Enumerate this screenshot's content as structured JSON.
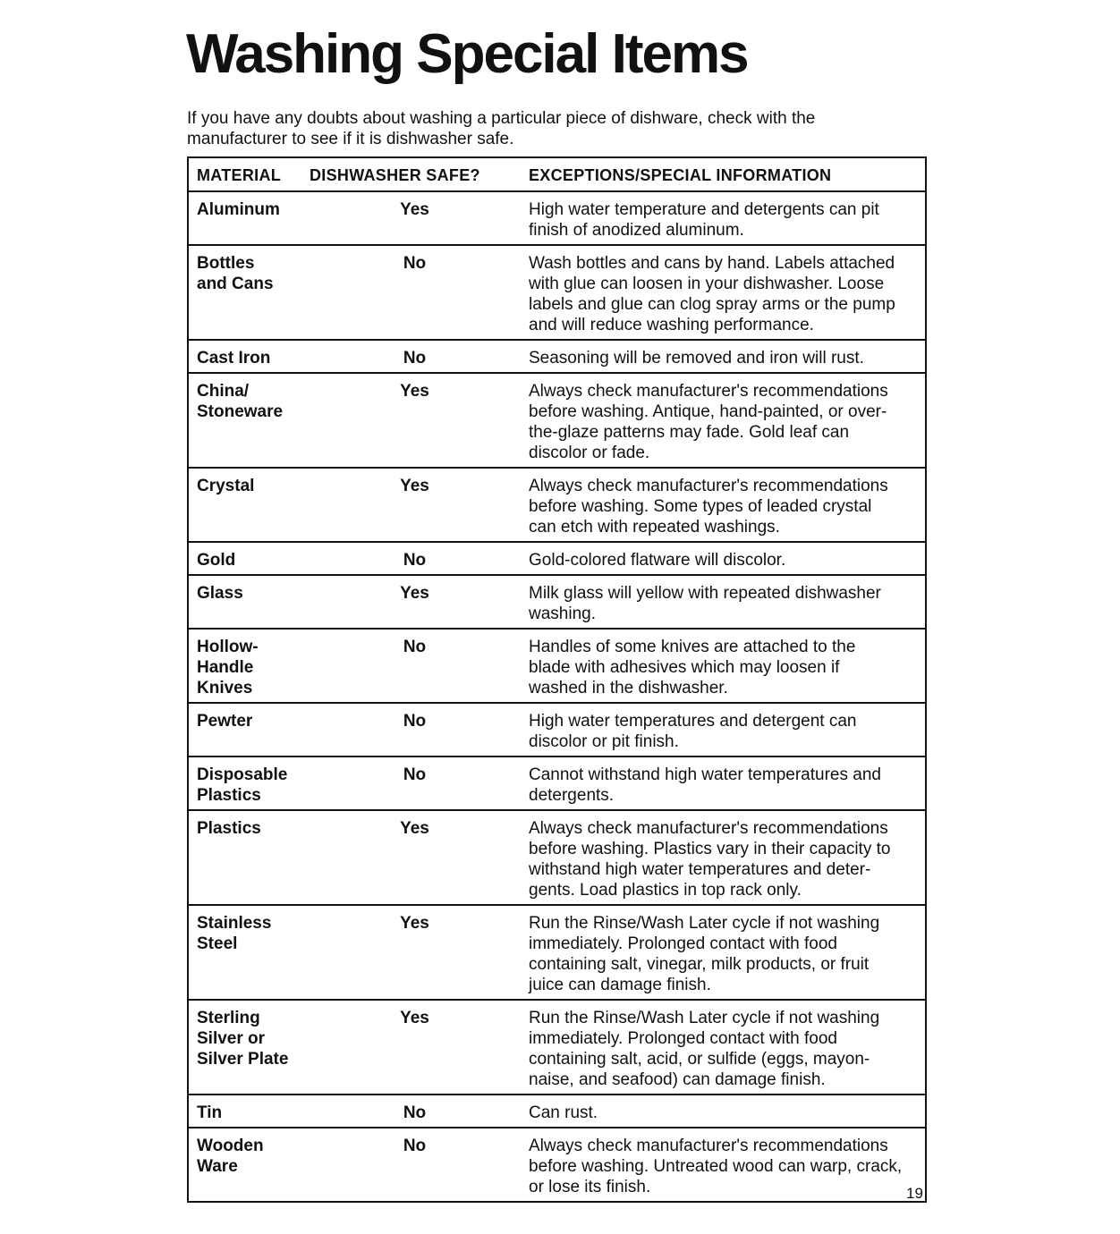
{
  "title": "Washing Special Items",
  "intro": "If you have any doubts about washing a particular piece of dishware, check with the\nmanufacturer to see if it is dishwasher safe.",
  "table": {
    "headers": [
      "MATERIAL",
      "DISHWASHER SAFE?",
      "EXCEPTIONS/SPECIAL INFORMATION"
    ],
    "rows": [
      {
        "material": "Aluminum",
        "safe": "Yes",
        "info": "High water temperature and detergents can pit\nfinish of anodized aluminum."
      },
      {
        "material": "Bottles\nand Cans",
        "safe": "No",
        "info": "Wash bottles and cans by hand. Labels attached\nwith glue can loosen in your dishwasher. Loose\nlabels and glue can clog spray arms or the pump\nand will reduce washing performance."
      },
      {
        "material": "Cast Iron",
        "safe": "No",
        "info": "Seasoning will be removed and iron will rust."
      },
      {
        "material": "China/\nStoneware",
        "safe": "Yes",
        "info": "Always check manufacturer's recommendations\nbefore washing. Antique, hand-painted, or over-\nthe-glaze patterns may fade. Gold leaf can\ndiscolor or fade."
      },
      {
        "material": "Crystal",
        "safe": "Yes",
        "info": "Always check manufacturer's recommendations\nbefore washing. Some types of leaded crystal\ncan etch with repeated washings."
      },
      {
        "material": "Gold",
        "safe": "No",
        "info": "Gold-colored flatware will discolor."
      },
      {
        "material": "Glass",
        "safe": "Yes",
        "info": "Milk glass will yellow with repeated dishwasher\nwashing."
      },
      {
        "material": "Hollow-\nHandle\nKnives",
        "safe": "No",
        "info": "Handles of some knives are attached to the\nblade with adhesives which may loosen if\nwashed in the dishwasher."
      },
      {
        "material": "Pewter",
        "safe": "No",
        "info": "High water temperatures and detergent can\ndiscolor or pit finish."
      },
      {
        "material": "Disposable\nPlastics",
        "safe": "No",
        "info": "Cannot withstand high water temperatures and\ndetergents."
      },
      {
        "material": "Plastics",
        "safe": "Yes",
        "info": "Always check manufacturer's recommendations\nbefore washing. Plastics vary in their capacity to\nwithstand high water temperatures and deter-\ngents. Load plastics in top rack only."
      },
      {
        "material": "Stainless\nSteel",
        "safe": "Yes",
        "info": "Run the Rinse/Wash Later cycle if not washing\nimmediately. Prolonged contact with food\ncontaining salt, vinegar, milk products, or fruit\njuice can damage finish."
      },
      {
        "material": "Sterling\nSilver or\nSilver Plate",
        "safe": "Yes",
        "info": "Run the Rinse/Wash Later cycle if not washing\nimmediately. Prolonged contact with food\ncontaining salt, acid, or sulfide (eggs, mayon-\nnaise, and seafood) can damage finish."
      },
      {
        "material": "Tin",
        "safe": "No",
        "info": "Can rust."
      },
      {
        "material": "Wooden\nWare",
        "safe": "No",
        "info": "Always check manufacturer's recommendations\nbefore washing. Untreated wood can warp, crack,\nor lose its finish."
      }
    ]
  },
  "page_number": "19"
}
